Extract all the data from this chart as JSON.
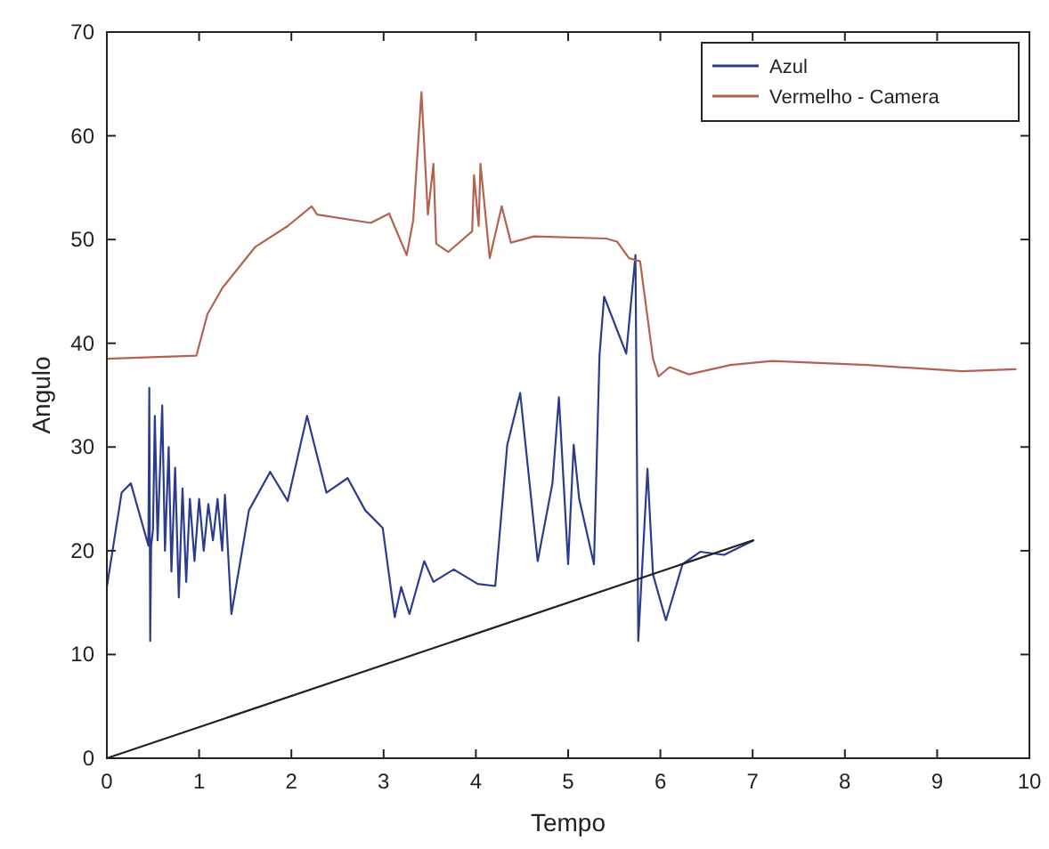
{
  "chart_data": {
    "type": "line",
    "xlabel": "Tempo",
    "ylabel": "Angulo",
    "xlim": [
      0,
      10
    ],
    "ylim": [
      0,
      70
    ],
    "xticks": [
      0,
      1,
      2,
      3,
      4,
      5,
      6,
      7,
      8,
      9,
      10
    ],
    "yticks": [
      0,
      10,
      20,
      30,
      40,
      50,
      60,
      70
    ],
    "grid": false,
    "legend": "top right",
    "line_style": "solid",
    "marker": "none",
    "series": [
      {
        "name": "Azul",
        "color": "#2b3c8f",
        "x": [
          0,
          0.16,
          0.26,
          0.45,
          0.46,
          0.47,
          0.48,
          0.5,
          0.52,
          0.55,
          0.6,
          0.63,
          0.67,
          0.7,
          0.74,
          0.78,
          0.82,
          0.86,
          0.9,
          0.95,
          1.0,
          1.05,
          1.1,
          1.15,
          1.2,
          1.25,
          1.28,
          1.35,
          1.54,
          1.77,
          1.96,
          2.17,
          2.38,
          2.61,
          2.8,
          2.99,
          3.12,
          3.19,
          3.28,
          3.44,
          3.54,
          3.76,
          4.02,
          4.21,
          4.34,
          4.48,
          4.67,
          4.83,
          4.9,
          5.0,
          5.06,
          5.12,
          5.28,
          5.34,
          5.39,
          5.63,
          5.73,
          5.76,
          5.86,
          5.92,
          6.06,
          6.24,
          6.43,
          6.69,
          7.01
        ],
        "values": [
          16.5,
          25.6,
          26.5,
          20.5,
          35.7,
          11.3,
          20.5,
          22,
          33,
          21,
          34,
          20,
          30,
          18,
          28,
          15.5,
          26,
          17,
          25,
          19,
          25,
          20,
          24.5,
          21,
          25,
          20,
          25.4,
          13.9,
          23.9,
          27.6,
          24.8,
          33,
          25.6,
          27,
          23.9,
          22.2,
          13.6,
          16.5,
          13.9,
          19,
          17,
          18.2,
          16.8,
          16.6,
          30.2,
          35.2,
          19,
          26.5,
          34.8,
          18.7,
          30.2,
          25,
          18.7,
          38.8,
          44.5,
          39,
          48.5,
          11.3,
          27.9,
          17.7,
          13.3,
          18.7,
          19.9,
          19.6,
          21
        ]
      },
      {
        "name": "Vermelho - Camera",
        "color": "#b5614f",
        "x": [
          0,
          0.97,
          1.09,
          1.25,
          1.61,
          1.96,
          2.22,
          2.28,
          2.86,
          3.06,
          3.25,
          3.32,
          3.41,
          3.48,
          3.54,
          3.57,
          3.7,
          3.96,
          3.98,
          4.03,
          4.05,
          4.15,
          4.28,
          4.38,
          4.63,
          5.41,
          5.53,
          5.66,
          5.78,
          5.92,
          5.98,
          6.1,
          6.31,
          6.76,
          7.21,
          8.24,
          9.27,
          9.85
        ],
        "values": [
          38.5,
          38.8,
          42.8,
          45.3,
          49.3,
          51.3,
          53.2,
          52.4,
          51.6,
          52.5,
          48.5,
          51.8,
          64.2,
          52.4,
          57.3,
          49.6,
          48.8,
          50.8,
          56.2,
          51.3,
          57.3,
          48.2,
          53.2,
          49.7,
          50.3,
          50.1,
          49.8,
          48.2,
          47.9,
          38.5,
          36.8,
          37.7,
          37,
          37.9,
          38.3,
          37.9,
          37.3,
          37.5
        ]
      },
      {
        "color": "#222222",
        "x": [
          0,
          7
        ],
        "values": [
          0,
          21
        ]
      }
    ]
  }
}
